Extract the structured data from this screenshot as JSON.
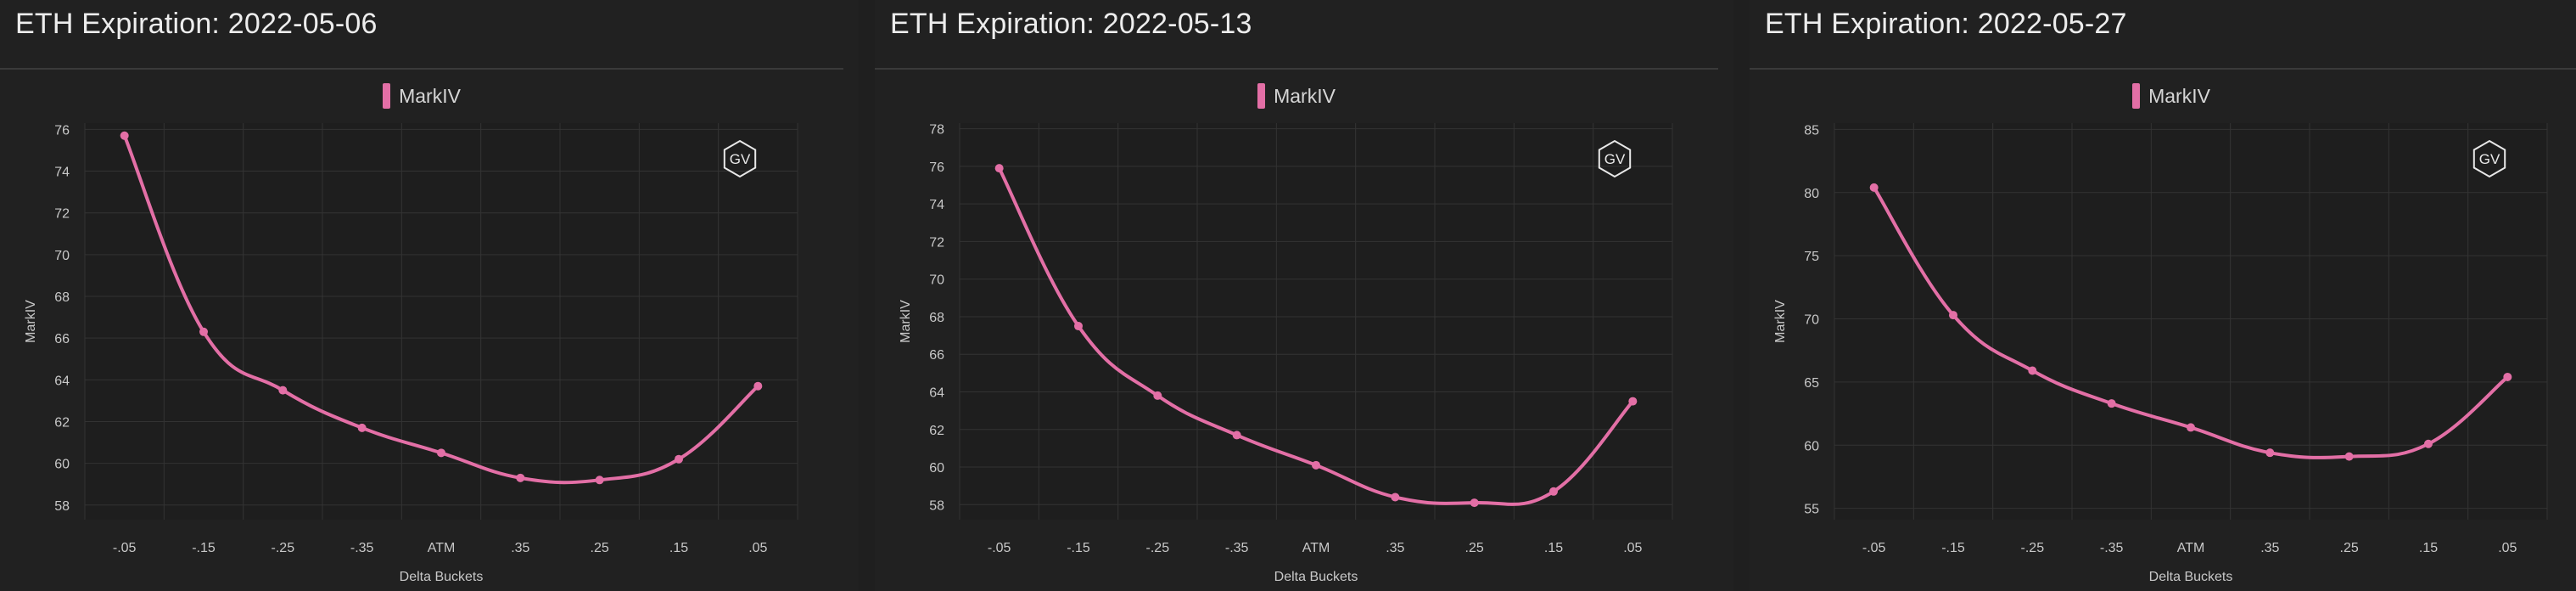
{
  "panels": [
    {
      "title": "ETH Expiration: 2022-05-06",
      "legend_label": "MarkIV",
      "logo_text": "GV"
    },
    {
      "title": "ETH Expiration: 2022-05-13",
      "legend_label": "MarkIV",
      "logo_text": "GV"
    },
    {
      "title": "ETH Expiration: 2022-05-27",
      "legend_label": "MarkIV",
      "logo_text": "GV"
    }
  ],
  "colors": {
    "series": "#e36fa6",
    "background": "#212121",
    "grid": "#333333"
  },
  "chart_data": [
    {
      "type": "line",
      "title": "ETH Expiration: 2022-05-06",
      "xlabel": "Delta Buckets",
      "ylabel": "MarkIV",
      "categories": [
        "-.05",
        "-.15",
        "-.25",
        "-.35",
        "ATM",
        ".35",
        ".25",
        ".15",
        ".05"
      ],
      "series": [
        {
          "name": "MarkIV",
          "values": [
            75.7,
            66.3,
            63.5,
            61.7,
            60.5,
            59.3,
            59.2,
            60.2,
            63.7
          ]
        }
      ],
      "ylim": [
        57.3,
        76.3
      ],
      "yticks": [
        58,
        60,
        62,
        64,
        66,
        68,
        70,
        72,
        74,
        76
      ],
      "grid": true,
      "legend": "top-center"
    },
    {
      "type": "line",
      "title": "ETH Expiration: 2022-05-13",
      "xlabel": "Delta Buckets",
      "ylabel": "MarkIV",
      "categories": [
        "-.05",
        "-.15",
        "-.25",
        "-.35",
        "ATM",
        ".35",
        ".25",
        ".15",
        ".05"
      ],
      "series": [
        {
          "name": "MarkIV",
          "values": [
            75.9,
            67.5,
            63.8,
            61.7,
            60.1,
            58.4,
            58.1,
            58.7,
            63.5
          ]
        }
      ],
      "ylim": [
        57.2,
        78.3
      ],
      "yticks": [
        58,
        60,
        62,
        64,
        66,
        68,
        70,
        72,
        74,
        76,
        78
      ],
      "grid": true,
      "legend": "top-center"
    },
    {
      "type": "line",
      "title": "ETH Expiration: 2022-05-27",
      "xlabel": "Delta Buckets",
      "ylabel": "MarkIV",
      "categories": [
        "-.05",
        "-.15",
        "-.25",
        "-.35",
        "ATM",
        ".35",
        ".25",
        ".15",
        ".05"
      ],
      "series": [
        {
          "name": "MarkIV",
          "values": [
            80.4,
            70.3,
            65.9,
            63.3,
            61.4,
            59.4,
            59.1,
            60.1,
            65.4
          ]
        }
      ],
      "ylim": [
        54.1,
        85.5
      ],
      "yticks": [
        55,
        60,
        65,
        70,
        75,
        80,
        85
      ],
      "grid": true,
      "legend": "top-center"
    }
  ]
}
